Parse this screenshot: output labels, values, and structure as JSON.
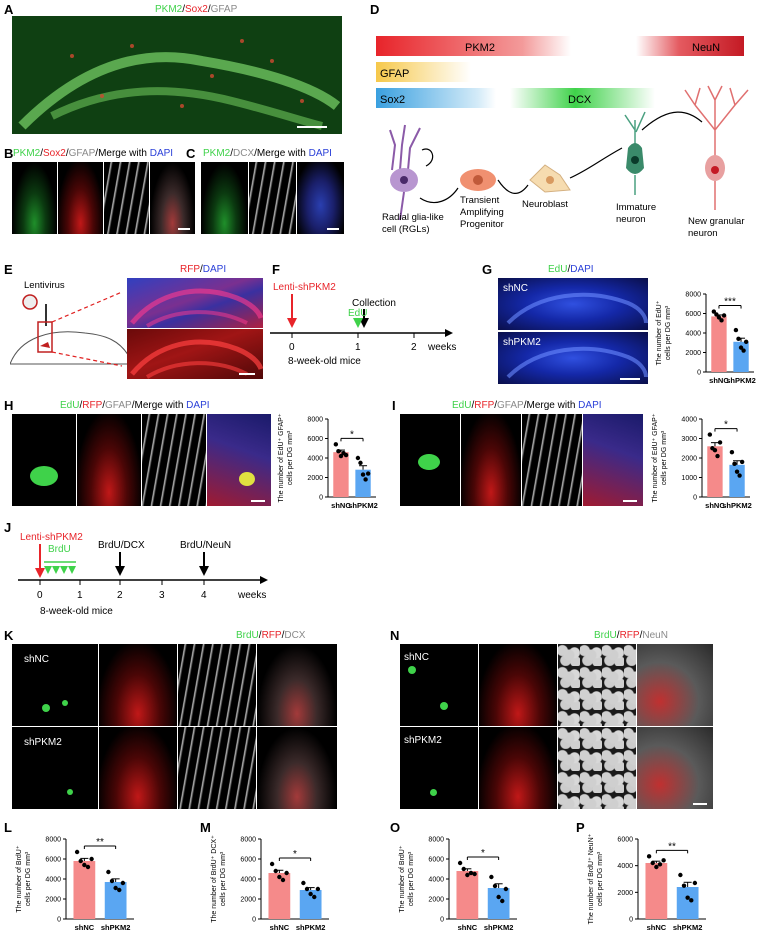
{
  "panels": {
    "A": "A",
    "B": "B",
    "C": "C",
    "D": "D",
    "E": "E",
    "F": "F",
    "G": "G",
    "H": "H",
    "I": "I",
    "J": "J",
    "K": "K",
    "L": "L",
    "M": "M",
    "N": "N",
    "O": "O",
    "P": "P"
  },
  "stain": {
    "pkm2": "PKM2",
    "sox2": "Sox2",
    "gfap": "GFAP",
    "dcx": "DCX",
    "dapi": "DAPI",
    "rfp": "RFP",
    "edu": "EdU",
    "brdu": "BrdU",
    "neun": "NeuN",
    "slash": "/",
    "merge_with": "Merge with "
  },
  "D": {
    "bar_pkm2": "PKM2",
    "bar_neun": "NeuN",
    "bar_gfap": "GFAP",
    "bar_sox2": "Sox2",
    "bar_dcx": "DCX",
    "cells": {
      "rgl": "Radial glia-like\ncell (RGLs)",
      "tap": "Transient\nAmplifying\nProgenitor",
      "nb": "Neuroblast",
      "imm": "Immature\nneuron",
      "new": "New granular\nneuron"
    },
    "colors": {
      "pkm2": "#e8242a",
      "neun": "#c41a24",
      "gfap": "#f6c84a",
      "sox2": "#3aa0e0",
      "dcx": "#3fd24a"
    }
  },
  "E": {
    "virus": "Lentivirus"
  },
  "F": {
    "treat": "Lenti-shPKM2",
    "edu": "EdU",
    "collect": "Collection",
    "ticks": [
      "0",
      "1",
      "2"
    ],
    "unit": "weeks",
    "mice": "8-week-old mice"
  },
  "J": {
    "treat": "Lenti-shPKM2",
    "brdu": "BrdU",
    "dcx_time": "BrdU/DCX",
    "neun_time": "BrdU/NeuN",
    "ticks": [
      "0",
      "1",
      "2",
      "3",
      "4"
    ],
    "unit": "weeks",
    "mice": "8-week-old mice"
  },
  "groups": {
    "ctrl": "shNC",
    "kd": "shPKM2"
  },
  "colors": {
    "ctrl_bar": "#f58a8a",
    "kd_bar": "#5aa6f2"
  },
  "chart_data": [
    {
      "id": "G",
      "type": "bar",
      "categories": [
        "shNC",
        "shPKM2"
      ],
      "values": [
        5700,
        3100
      ],
      "points": [
        [
          6200,
          5900,
          5600,
          5300,
          5800
        ],
        [
          4300,
          3400,
          2500,
          2200,
          3100
        ]
      ],
      "ylabel": "The number of EdU⁺ cells per DG mm³",
      "ylim": [
        0,
        8000
      ],
      "yticks": [
        "0",
        "2000",
        "4000",
        "6000",
        "8000"
      ],
      "sig": "***"
    },
    {
      "id": "H",
      "type": "bar",
      "categories": [
        "shNC",
        "shPKM2"
      ],
      "values": [
        4600,
        2800
      ],
      "points": [
        [
          5400,
          4700,
          4200,
          4500,
          4300
        ],
        [
          4000,
          3500,
          2300,
          1800,
          2400
        ]
      ],
      "ylabel": "The number of EdU⁺ GFAP⁺ cells per DG mm³",
      "ylim": [
        0,
        8000
      ],
      "yticks": [
        "0",
        "2000",
        "4000",
        "6000",
        "8000"
      ],
      "sig": "*"
    },
    {
      "id": "I",
      "type": "bar",
      "categories": [
        "shNC",
        "shPKM2"
      ],
      "values": [
        2600,
        1650
      ],
      "points": [
        [
          3200,
          2500,
          2400,
          2100,
          2800
        ],
        [
          2300,
          1700,
          1300,
          1100,
          1800
        ]
      ],
      "ylabel": "The number of EdU⁺ GFAP⁺ cells per DG mm³",
      "ylim": [
        0,
        4000
      ],
      "yticks": [
        "0",
        "1000",
        "2000",
        "3000",
        "4000"
      ],
      "sig": "*"
    },
    {
      "id": "L",
      "type": "bar",
      "categories": [
        "shNC",
        "shPKM2"
      ],
      "values": [
        5800,
        3700
      ],
      "points": [
        [
          6700,
          5800,
          5400,
          5200,
          6000
        ],
        [
          4700,
          3800,
          3100,
          2900,
          3600
        ]
      ],
      "ylabel": "The number of BrdU⁺ cells per DG mm³",
      "ylim": [
        0,
        8000
      ],
      "yticks": [
        "0",
        "2000",
        "4000",
        "6000",
        "8000"
      ],
      "sig": "**"
    },
    {
      "id": "M",
      "type": "bar",
      "categories": [
        "shNC",
        "shPKM2"
      ],
      "values": [
        4600,
        2900
      ],
      "points": [
        [
          5500,
          4800,
          4200,
          3900,
          4600
        ],
        [
          3600,
          3000,
          2500,
          2200,
          3000
        ]
      ],
      "ylabel": "The number of BrdU⁺ DCX⁺ cells per DG mm³",
      "ylim": [
        0,
        8000
      ],
      "yticks": [
        "0",
        "2000",
        "4000",
        "6000",
        "8000"
      ],
      "sig": "*"
    },
    {
      "id": "O",
      "type": "bar",
      "categories": [
        "shNC",
        "shPKM2"
      ],
      "values": [
        4800,
        3100
      ],
      "points": [
        [
          5600,
          5000,
          4400,
          4600,
          4500
        ],
        [
          4200,
          3300,
          2200,
          1800,
          3000
        ]
      ],
      "ylabel": "The number of BrdU⁺ cells per DG mm³",
      "ylim": [
        0,
        8000
      ],
      "yticks": [
        "0",
        "2000",
        "4000",
        "6000",
        "8000"
      ],
      "sig": "*"
    },
    {
      "id": "P",
      "type": "bar",
      "categories": [
        "shNC",
        "shPKM2"
      ],
      "values": [
        4200,
        2400
      ],
      "points": [
        [
          4700,
          4200,
          3900,
          4100,
          4400
        ],
        [
          3300,
          2500,
          1600,
          1400,
          2700
        ]
      ],
      "ylabel": "The number of BrdU⁺ NeuN⁺ cells per DG mm³",
      "ylim": [
        0,
        6000
      ],
      "yticks": [
        "0",
        "2000",
        "4000",
        "6000"
      ],
      "sig": "**"
    }
  ]
}
